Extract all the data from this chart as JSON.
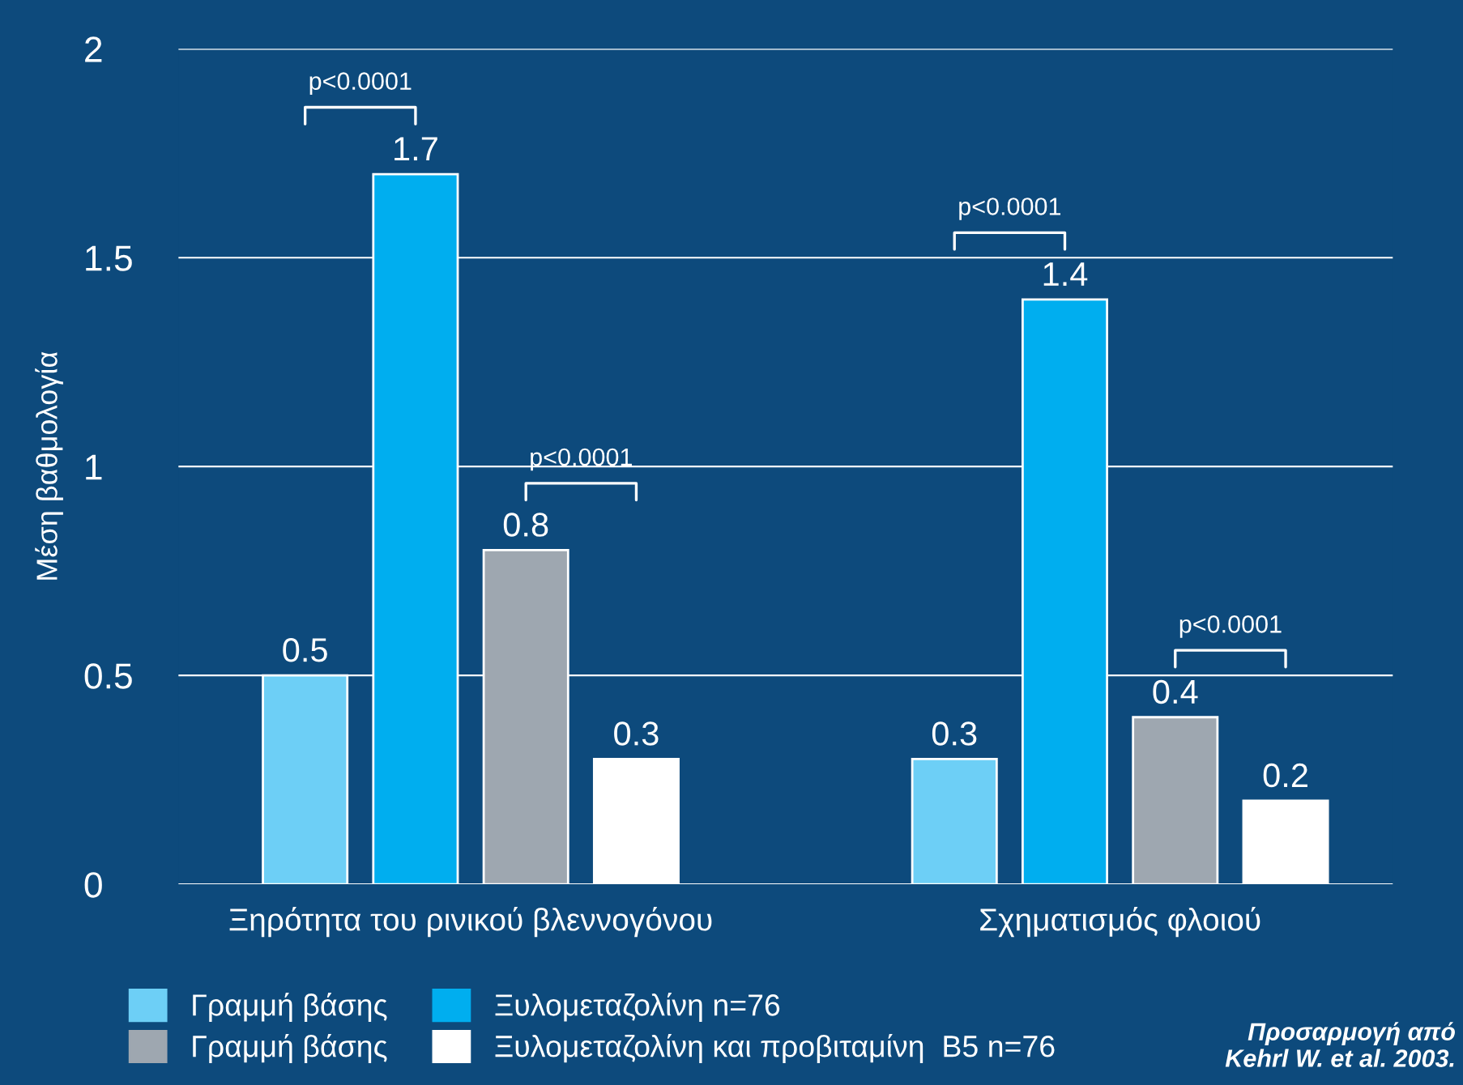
{
  "chart_data": {
    "type": "bar",
    "ylabel": "Μέση βαθμολογία",
    "categories": [
      "Ξηρότητα του ρινικού βλεννογόνου",
      "Σχηματισμός φλοιού"
    ],
    "series": [
      {
        "name": "Γραμμή βάσης",
        "color": "#6dcff6",
        "values": [
          0.5,
          0.3
        ]
      },
      {
        "name": "Ξυλομεταζολίνη n=76",
        "color": "#00aeef",
        "values": [
          1.7,
          1.4
        ]
      },
      {
        "name": "Γραμμή βάσης",
        "color": "#9ea7b0",
        "values": [
          0.8,
          0.4
        ]
      },
      {
        "name": "Ξυλομεταζολίνη και προβιταμίνη  B5 n=76",
        "color": "#ffffff",
        "values": [
          0.3,
          0.2
        ]
      }
    ],
    "ylim": [
      0,
      2
    ],
    "yticks": [
      0,
      0.5,
      1,
      1.5,
      2
    ],
    "grid": "y",
    "data_labels": true,
    "legend": "bottom",
    "annotations": [
      "p<0.0001",
      "p<0.0001",
      "p<0.0001",
      "p<0.0001",
      "Προσαρμογή από Kehrl W. et al. 2003."
    ]
  }
}
